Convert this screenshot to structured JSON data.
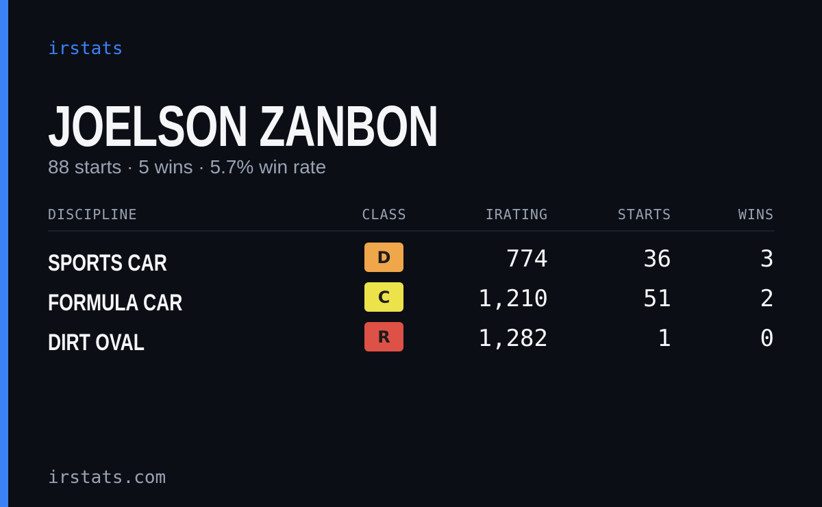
{
  "brand": "irstats",
  "name": "JOELSON ZANBON",
  "summary": "88 starts · 5 wins · 5.7% win rate",
  "table": {
    "headers": [
      "DISCIPLINE",
      "CLASS",
      "IRATING",
      "STARTS",
      "WINS"
    ],
    "rows": [
      {
        "discipline": "SPORTS CAR",
        "class": "D",
        "class_color": "#f0a64a",
        "irating": "774",
        "starts": "36",
        "wins": "3"
      },
      {
        "discipline": "FORMULA CAR",
        "class": "C",
        "class_color": "#ece24a",
        "irating": "1,210",
        "starts": "51",
        "wins": "2"
      },
      {
        "discipline": "DIRT OVAL",
        "class": "R",
        "class_color": "#dd5146",
        "irating": "1,282",
        "starts": "1",
        "wins": "0"
      }
    ]
  },
  "footer": "irstats.com"
}
